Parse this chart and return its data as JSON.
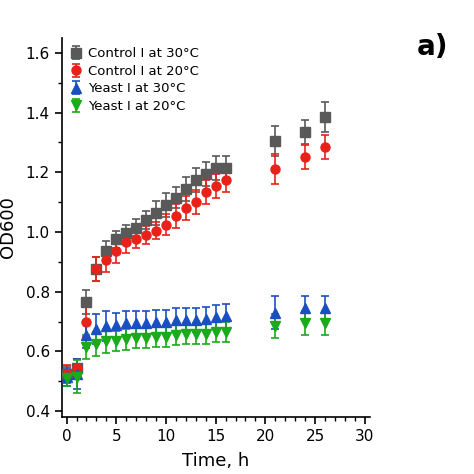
{
  "title": "",
  "xlabel": "Time, h",
  "ylabel": "OD600",
  "annotation": "a)",
  "xlim": [
    -0.5,
    30.5
  ],
  "ylim": [
    0.38,
    1.65
  ],
  "xticks": [
    0,
    5,
    10,
    15,
    20,
    25,
    30
  ],
  "yticks": [
    0.4,
    0.6,
    0.8,
    1.0,
    1.2,
    1.4,
    1.6
  ],
  "series": [
    {
      "label": "Control I at 30°C",
      "color": "#595959",
      "marker": "s",
      "markersize": 6.5,
      "x": [
        0,
        1,
        2,
        3,
        4,
        5,
        6,
        7,
        8,
        9,
        10,
        11,
        12,
        13,
        14,
        15,
        16,
        21,
        24,
        26
      ],
      "y": [
        0.525,
        0.545,
        0.765,
        0.875,
        0.935,
        0.975,
        0.995,
        1.015,
        1.04,
        1.065,
        1.09,
        1.115,
        1.145,
        1.175,
        1.195,
        1.215,
        1.215,
        1.305,
        1.335,
        1.385
      ],
      "yerr": [
        0.025,
        0.03,
        0.04,
        0.04,
        0.035,
        0.03,
        0.03,
        0.03,
        0.03,
        0.04,
        0.04,
        0.035,
        0.04,
        0.04,
        0.04,
        0.04,
        0.04,
        0.05,
        0.04,
        0.05
      ]
    },
    {
      "label": "Control I at 20°C",
      "color": "#e8221a",
      "marker": "o",
      "markersize": 6.5,
      "x": [
        0,
        1,
        2,
        3,
        4,
        5,
        6,
        7,
        8,
        9,
        10,
        11,
        12,
        13,
        14,
        15,
        16,
        21,
        24,
        26
      ],
      "y": [
        0.525,
        0.545,
        0.7,
        0.875,
        0.905,
        0.935,
        0.965,
        0.975,
        0.99,
        1.005,
        1.025,
        1.055,
        1.08,
        1.1,
        1.135,
        1.155,
        1.175,
        1.21,
        1.25,
        1.285
      ],
      "yerr": [
        0.03,
        0.03,
        0.05,
        0.04,
        0.04,
        0.04,
        0.035,
        0.03,
        0.03,
        0.03,
        0.035,
        0.04,
        0.04,
        0.04,
        0.04,
        0.04,
        0.04,
        0.05,
        0.04,
        0.04
      ]
    },
    {
      "label": "Yeast I at 30°C",
      "color": "#1a4fc4",
      "marker": "^",
      "markersize": 6.5,
      "x": [
        0,
        1,
        2,
        3,
        4,
        5,
        6,
        7,
        8,
        9,
        10,
        11,
        12,
        13,
        14,
        15,
        16,
        21,
        24,
        26
      ],
      "y": [
        0.515,
        0.525,
        0.655,
        0.675,
        0.685,
        0.69,
        0.695,
        0.695,
        0.695,
        0.7,
        0.7,
        0.705,
        0.705,
        0.705,
        0.71,
        0.715,
        0.72,
        0.73,
        0.745,
        0.745
      ],
      "yerr": [
        0.03,
        0.05,
        0.045,
        0.05,
        0.05,
        0.04,
        0.04,
        0.04,
        0.04,
        0.04,
        0.04,
        0.04,
        0.04,
        0.04,
        0.04,
        0.04,
        0.04,
        0.055,
        0.04,
        0.04
      ]
    },
    {
      "label": "Yeast I at 20°C",
      "color": "#1aaa1a",
      "marker": "v",
      "markersize": 6.5,
      "x": [
        0,
        1,
        2,
        3,
        4,
        5,
        6,
        7,
        8,
        9,
        10,
        11,
        12,
        13,
        14,
        15,
        16,
        21,
        24,
        26
      ],
      "y": [
        0.51,
        0.515,
        0.615,
        0.625,
        0.635,
        0.635,
        0.64,
        0.645,
        0.645,
        0.65,
        0.65,
        0.655,
        0.66,
        0.66,
        0.66,
        0.665,
        0.665,
        0.685,
        0.695,
        0.695
      ],
      "yerr": [
        0.025,
        0.055,
        0.04,
        0.04,
        0.04,
        0.035,
        0.035,
        0.035,
        0.035,
        0.035,
        0.035,
        0.035,
        0.035,
        0.035,
        0.035,
        0.035,
        0.035,
        0.04,
        0.04,
        0.04
      ]
    }
  ],
  "legend_loc": "upper left",
  "bg_color": "#ffffff",
  "figsize": [
    4.74,
    4.74
  ],
  "dpi": 100
}
